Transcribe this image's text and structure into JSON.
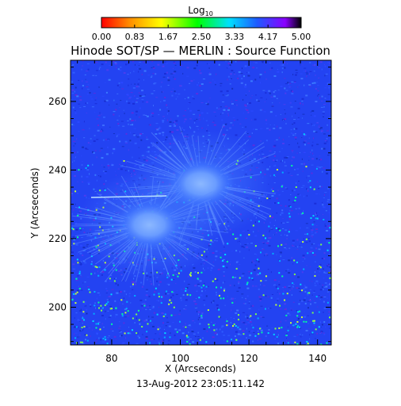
{
  "chart_data": {
    "type": "heatmap",
    "title": "Hinode SOT/SP — MERLIN : Source Function",
    "xlabel": "X (Arcseconds)",
    "ylabel": "Y (Arcseconds)",
    "date": "13-Aug-2012 23:05:11.142",
    "xlim": [
      68,
      144
    ],
    "ylim": [
      189,
      272
    ],
    "x_ticks": [
      80,
      100,
      120,
      140
    ],
    "y_ticks": [
      200,
      220,
      240,
      260
    ],
    "colorbar": {
      "label": "Log",
      "label_sub": "10",
      "range": [
        0,
        5
      ],
      "tick_values": [
        0.0,
        0.83,
        1.67,
        2.5,
        3.33,
        4.17,
        5.0
      ],
      "tick_labels": [
        "0.00",
        "0.83",
        "1.67",
        "2.50",
        "3.33",
        "4.17",
        "5.00"
      ],
      "colors": [
        "#ff0000",
        "#ff8c00",
        "#ffff00",
        "#00ff00",
        "#00e0ff",
        "#1e5aff",
        "#8a00ff",
        "#000000"
      ]
    },
    "background_value": 3.9,
    "features": [
      {
        "x": 106,
        "y": 236,
        "rx": 7,
        "ry": 5,
        "value": 3.45
      },
      {
        "x": 91,
        "y": 224,
        "rx": 7,
        "ry": 5,
        "value": 3.45
      }
    ]
  }
}
